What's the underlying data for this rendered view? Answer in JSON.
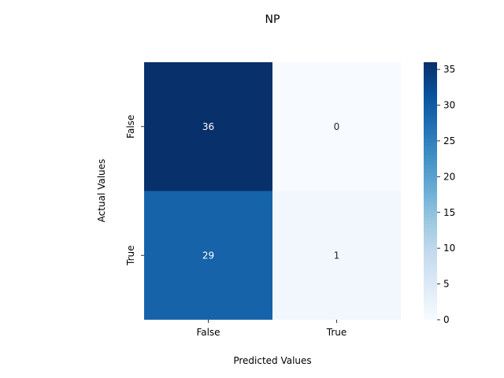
{
  "chart_data": {
    "type": "heatmap",
    "title": "NP",
    "xlabel": "Predicted Values",
    "ylabel": "Actual Values",
    "x_categories": [
      "False",
      "True"
    ],
    "y_categories": [
      "False",
      "True"
    ],
    "values": [
      [
        36,
        0
      ],
      [
        29,
        1
      ]
    ],
    "colormap": "Blues",
    "colorbar": {
      "range": [
        0,
        36
      ],
      "ticks": [
        0,
        5,
        10,
        15,
        20,
        25,
        30,
        35
      ]
    },
    "colors": {
      "low": "#f7fbff",
      "high": "#08306b",
      "annotation_dark_text": "#262626",
      "annotation_light_text": "#ffffff"
    }
  }
}
